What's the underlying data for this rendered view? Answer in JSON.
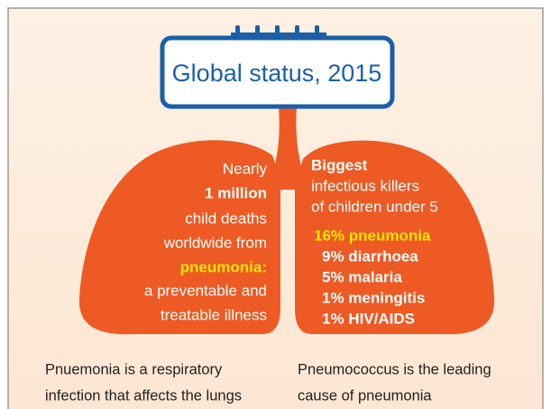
{
  "title": "Global status, 2015",
  "left_lung": {
    "lines": [
      "Nearly",
      "1 million",
      "child deaths",
      "worldwide from",
      "pneumonia:",
      "a preventable and",
      "treatable illness"
    ]
  },
  "right_lung": {
    "heading": "Biggest",
    "lines": [
      "infectious killers",
      "of children under 5"
    ],
    "killers": [
      "16% pneumonia",
      "9% diarrhoea",
      "5% malaria",
      "1% meningitis",
      "1% HIV/AIDS"
    ]
  },
  "captions": {
    "left": [
      "Pnuemonia is a respiratory",
      "infection that affects the lungs"
    ],
    "right": [
      "Pneumococcus is the leading",
      "cause of pneumonia"
    ]
  }
}
